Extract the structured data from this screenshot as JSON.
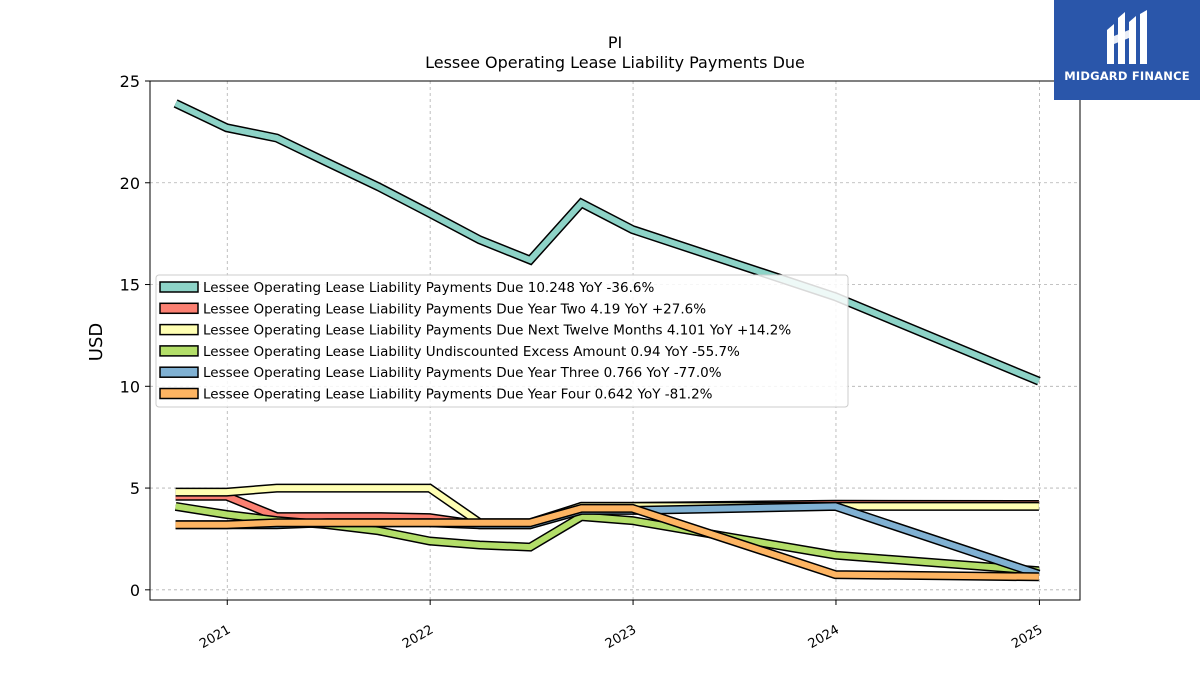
{
  "brand": {
    "name": "MIDGARD FINANCE",
    "bg": "#2a56aa"
  },
  "chart_data": {
    "type": "line",
    "title": "PI",
    "subtitle": "Lessee Operating Lease Liability Payments Due",
    "xlabel": "",
    "ylabel": "USD",
    "ylim": [
      -0.5,
      25
    ],
    "yticks": [
      0,
      5,
      10,
      15,
      20,
      25
    ],
    "xlim": [
      "2020-08-15",
      "2025-03-15"
    ],
    "xticks": [
      "2021",
      "2022",
      "2023",
      "2024",
      "2025"
    ],
    "grid": true,
    "legend_position": "center-left",
    "x": [
      "2020-09-30",
      "2020-12-31",
      "2021-03-31",
      "2021-06-30",
      "2021-09-30",
      "2021-12-31",
      "2022-03-31",
      "2022-06-30",
      "2022-09-30",
      "2022-12-31",
      "2023-12-31",
      "2024-12-31"
    ],
    "series": [
      {
        "name": "Lessee Operating Lease Liability Payments Due",
        "legend": "Lessee Operating Lease Liability Payments Due  10.248 YoY -36.6%",
        "color": "#8dd3c7",
        "values": [
          23.9,
          22.7,
          22.2,
          21.0,
          19.8,
          18.5,
          17.2,
          16.2,
          19.0,
          17.7,
          14.4,
          10.248
        ]
      },
      {
        "name": "Lessee Operating Lease Liability Payments Due Year Two",
        "legend": "Lessee Operating Lease Liability Payments Due Year Two  4.19 YoY +27.6%",
        "color": "#fb8072",
        "values": [
          4.6,
          4.6,
          3.6,
          3.6,
          3.6,
          3.55,
          3.2,
          3.2,
          4.1,
          4.1,
          4.2,
          4.19
        ]
      },
      {
        "name": "Lessee Operating Lease Liability Payments Due Next Twelve Months",
        "legend": "Lessee Operating Lease Liability Payments Due Next Twelve Months  4.101 YoY +14.2%",
        "color": "#ffffb3",
        "values": [
          4.8,
          4.8,
          5.0,
          5.0,
          5.0,
          5.0,
          3.3,
          3.3,
          4.1,
          4.1,
          4.1,
          4.101
        ]
      },
      {
        "name": "Lessee Operating Lease Liability Undiscounted Excess Amount",
        "legend": "Lessee Operating Lease Liability Undiscounted Excess Amount  0.94 YoY -55.7%",
        "color": "#b3de69",
        "values": [
          4.1,
          3.7,
          3.4,
          3.2,
          2.9,
          2.4,
          2.2,
          2.1,
          3.6,
          3.4,
          1.7,
          0.94
        ]
      },
      {
        "name": "Lessee Operating Lease Liability Payments Due Year Three",
        "legend": "Lessee Operating Lease Liability Payments Due Year Three  0.766 YoY -77.0%",
        "color": "#80b1d3",
        "values": [
          3.2,
          3.2,
          3.2,
          3.3,
          3.3,
          3.3,
          3.2,
          3.2,
          3.9,
          3.9,
          4.1,
          0.766
        ]
      },
      {
        "name": "Lessee Operating Lease Liability Payments Due Year Four",
        "legend": "Lessee Operating Lease Liability Payments Due Year Four  0.642 YoY -81.2%",
        "color": "#fdb462",
        "values": [
          3.2,
          3.2,
          3.3,
          3.3,
          3.3,
          3.3,
          3.3,
          3.3,
          4.0,
          4.0,
          0.75,
          0.642
        ]
      }
    ]
  }
}
